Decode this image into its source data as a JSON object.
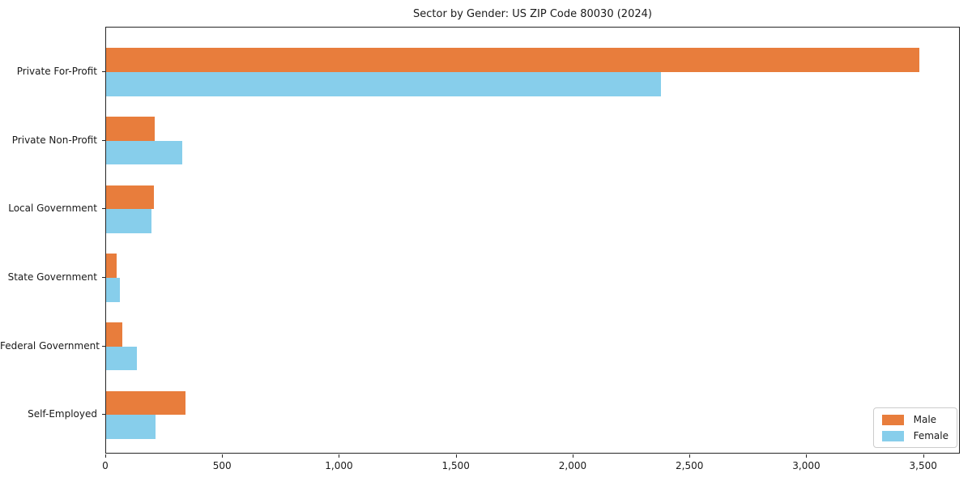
{
  "title": "Sector by Gender: US ZIP Code 80030 (2024)",
  "chart_data": {
    "type": "bar",
    "orientation": "horizontal",
    "title": "Sector by Gender: US ZIP Code 80030 (2024)",
    "xlabel": "",
    "ylabel": "",
    "categories": [
      "Private For-Profit",
      "Private Non-Profit",
      "Local Government",
      "State Government",
      "Federal Government",
      "Self-Employed"
    ],
    "series": [
      {
        "name": "Male",
        "color": "#e87d3c",
        "values": [
          3480,
          207,
          205,
          45,
          68,
          340
        ]
      },
      {
        "name": "Female",
        "color": "#87ceeb",
        "values": [
          2375,
          325,
          195,
          58,
          132,
          212
        ]
      }
    ],
    "xlim": [
      0,
      3650
    ],
    "xticks": [
      0,
      500,
      1000,
      1500,
      2000,
      2500,
      3000,
      3500
    ],
    "xtick_labels": [
      "0",
      "500",
      "1,000",
      "1,500",
      "2,000",
      "2,500",
      "3,000",
      "3,500"
    ],
    "grid": false,
    "legend_position": "lower right",
    "bar_height_frac": 0.35
  },
  "colors": {
    "male": "#e87d3c",
    "female": "#87ceeb",
    "axis": "#262626",
    "text": "#1a1a1a",
    "legend_border": "#cccccc",
    "background": "#ffffff"
  }
}
